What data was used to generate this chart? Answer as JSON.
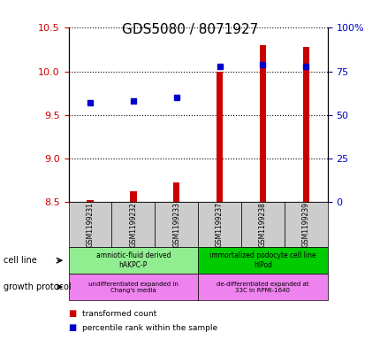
{
  "title": "GDS5080 / 8071927",
  "samples": [
    "GSM1199231",
    "GSM1199232",
    "GSM1199233",
    "GSM1199237",
    "GSM1199238",
    "GSM1199239"
  ],
  "transformed_count": [
    8.52,
    8.62,
    8.72,
    10.0,
    10.3,
    10.28
  ],
  "percentile_rank": [
    57,
    58,
    60,
    78,
    79,
    78
  ],
  "ylim_left": [
    8.5,
    10.5
  ],
  "ylim_right": [
    0,
    100
  ],
  "yticks_left": [
    8.5,
    9.0,
    9.5,
    10.0,
    10.5
  ],
  "yticks_right": [
    0,
    25,
    50,
    75,
    100
  ],
  "ytick_labels_right": [
    "0",
    "25",
    "50",
    "75",
    "100%"
  ],
  "red_color": "#cc0000",
  "blue_color": "#0000cc",
  "cell_line_groups": [
    {
      "label": "amniotic-fluid derived\nhAKPC-P",
      "samples": [
        0,
        1,
        2
      ],
      "color": "#90ee90"
    },
    {
      "label": "immortalized podocyte cell line\nhIPod",
      "samples": [
        3,
        4,
        5
      ],
      "color": "#00cc00"
    }
  ],
  "growth_protocol_groups": [
    {
      "label": "undifferentiated expanded in\nChang's media",
      "samples": [
        0,
        1,
        2
      ],
      "color": "#ee82ee"
    },
    {
      "label": "de-differentiated expanded at\n33C in RPMI-1640",
      "samples": [
        3,
        4,
        5
      ],
      "color": "#ee82ee"
    }
  ],
  "cell_line_label": "cell line",
  "growth_protocol_label": "growth protocol",
  "legend_items": [
    {
      "label": "transformed count",
      "color": "#cc0000"
    },
    {
      "label": "percentile rank within the sample",
      "color": "#0000cc"
    }
  ],
  "bar_bottom": 8.5,
  "tick_fontsize": 8,
  "title_fontsize": 11
}
